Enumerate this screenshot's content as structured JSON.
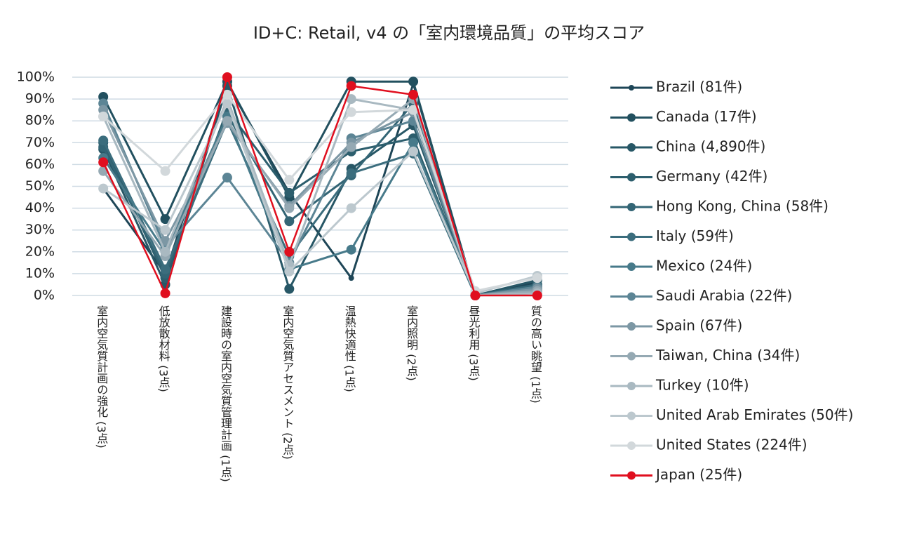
{
  "chart_data": {
    "type": "line",
    "title": "ID+C: Retail, v4 の「室内環境品質」の平均スコア",
    "categories": [
      "室内空気質計画の強化 (3点)",
      "低放散材料 (3点)",
      "建設時の室内空気質管理計画 (1点)",
      "室内空気質アセスメント (2点)",
      "温熱快適性 (1点)",
      "室内照明 (2点)",
      "昼光利用 (3点)",
      "質の高い眺望 (1点)"
    ],
    "ylim": [
      0,
      100
    ],
    "yticks": [
      {
        "value": 0,
        "label": "0%"
      },
      {
        "value": 10,
        "label": "10%"
      },
      {
        "value": 20,
        "label": "20%"
      },
      {
        "value": 30,
        "label": "30%"
      },
      {
        "value": 40,
        "label": "40%"
      },
      {
        "value": 50,
        "label": "50%"
      },
      {
        "value": 60,
        "label": "60%"
      },
      {
        "value": 70,
        "label": "70%"
      },
      {
        "value": 80,
        "label": "80%"
      },
      {
        "value": 90,
        "label": "90%"
      },
      {
        "value": 100,
        "label": "100%"
      }
    ],
    "grid": true,
    "legend": "right",
    "series": [
      {
        "name": "Brazil (81件)",
        "color": "#1e4657",
        "values": [
          49,
          10,
          97,
          47,
          8,
          97,
          0,
          6
        ]
      },
      {
        "name": "Canada (17件)",
        "color": "#22505f",
        "values": [
          91,
          35,
          98,
          45,
          98,
          98,
          0,
          5
        ]
      },
      {
        "name": "China (4,890件)",
        "color": "#275766",
        "values": [
          67,
          5,
          96,
          3,
          58,
          78,
          0,
          7
        ]
      },
      {
        "name": "Germany (42件)",
        "color": "#2c5e6d",
        "values": [
          70,
          8,
          85,
          47,
          66,
          72,
          0,
          4
        ]
      },
      {
        "name": "Hong Kong, China (58件)",
        "color": "#336575",
        "values": [
          68,
          10,
          83,
          34,
          55,
          88,
          0,
          5
        ]
      },
      {
        "name": "Italy (59件)",
        "color": "#3b6d7d",
        "values": [
          71,
          12,
          80,
          18,
          56,
          65,
          0,
          3
        ]
      },
      {
        "name": "Mexico (24件)",
        "color": "#477a8a",
        "values": [
          63,
          20,
          82,
          12,
          21,
          70,
          0,
          2
        ]
      },
      {
        "name": "Saudi Arabia (22件)",
        "color": "#5c8595",
        "values": [
          88,
          22,
          54,
          15,
          72,
          80,
          0,
          4
        ]
      },
      {
        "name": "Spain (67件)",
        "color": "#7c97a4",
        "values": [
          85,
          25,
          79,
          41,
          70,
          84,
          0,
          3
        ]
      },
      {
        "name": "Taiwan, China (34件)",
        "color": "#95a9b3",
        "values": [
          57,
          18,
          80,
          40,
          68,
          90,
          0,
          2
        ]
      },
      {
        "name": "Turkey (10件)",
        "color": "#a9b9c1",
        "values": [
          82,
          20,
          90,
          14,
          90,
          85,
          0,
          1
        ]
      },
      {
        "name": "United Arab Emirates (50件)",
        "color": "#bcc8ce",
        "values": [
          49,
          30,
          88,
          11,
          40,
          66,
          1,
          9
        ]
      },
      {
        "name": "United States (224件)",
        "color": "#d2d8db",
        "values": [
          82,
          57,
          92,
          53,
          84,
          85,
          2,
          8
        ]
      },
      {
        "name": "Japan (25件)",
        "color": "#e00f1f",
        "values": [
          61,
          1,
          100,
          20,
          96,
          92,
          0,
          0
        ]
      }
    ]
  }
}
